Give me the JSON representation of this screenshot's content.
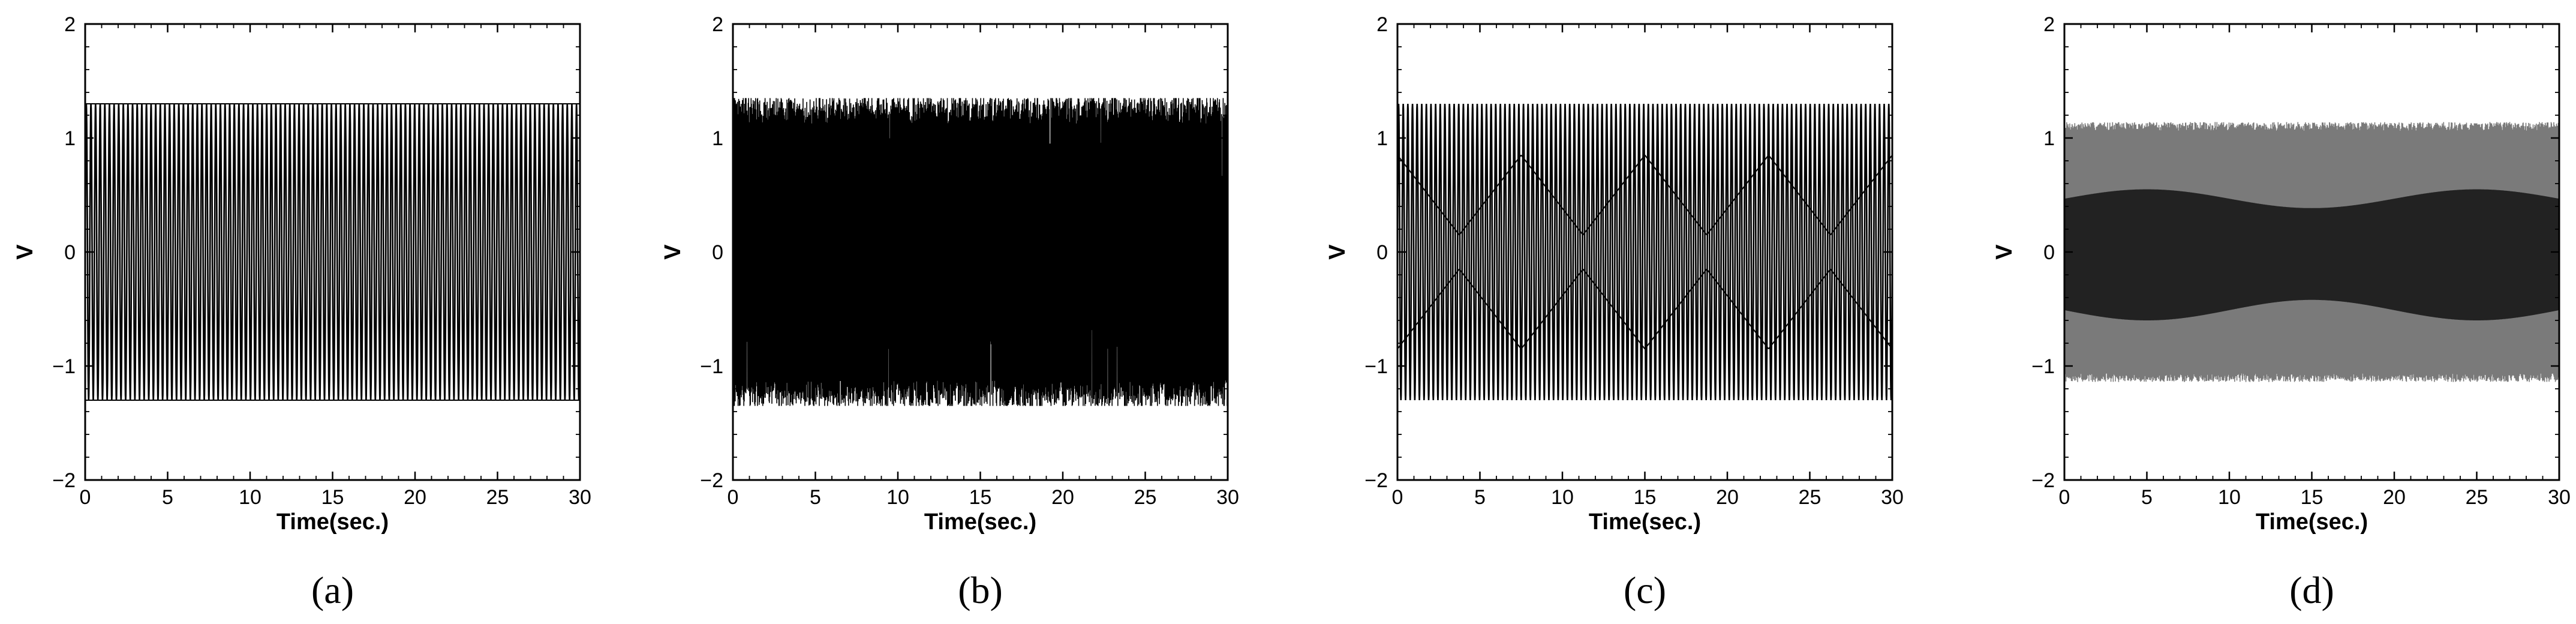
{
  "figure": {
    "panels": [
      {
        "label": "(a)"
      },
      {
        "label": "(b)"
      },
      {
        "label": "(c)"
      },
      {
        "label": "(d)"
      }
    ]
  },
  "chart_data": [
    {
      "type": "line",
      "panel_label": "(a)",
      "xlabel": "Time(sec.)",
      "ylabel": "V",
      "xlim": [
        0,
        30
      ],
      "ylim": [
        -2,
        2
      ],
      "xticks": [
        0,
        5,
        10,
        15,
        20,
        25,
        30
      ],
      "yticks": [
        -2,
        -1,
        0,
        1,
        2
      ],
      "grid": false,
      "series": [
        {
          "color": "#000000",
          "waveform": "steady oscillation, full-scale, slow beat",
          "oscillation_amplitude": 1.3,
          "cycles_over_range": 107,
          "envelope_max": 1.3,
          "envelope_min": -1.3,
          "inner_band_min": 1.3,
          "inner_band_max": 1.3,
          "beat_period": 6.0
        }
      ]
    },
    {
      "type": "line",
      "panel_label": "(b)",
      "xlabel": "Time(sec.)",
      "ylabel": "V",
      "xlim": [
        0,
        30
      ],
      "ylim": [
        -2,
        2
      ],
      "xticks": [
        0,
        5,
        10,
        15,
        20,
        25,
        30
      ],
      "yticks": [
        -2,
        -1,
        0,
        1,
        2
      ],
      "grid": false,
      "series": [
        {
          "color": "#000000",
          "waveform": "dense noisy oscillation",
          "oscillation_amplitude": 1.25,
          "envelope_max": 1.35,
          "envelope_min": -1.35,
          "dense_band": [
            -0.55,
            0.5
          ]
        }
      ]
    },
    {
      "type": "line",
      "panel_label": "(c)",
      "xlabel": "Time(sec.)",
      "ylabel": "V",
      "xlim": [
        0,
        30
      ],
      "ylim": [
        -2,
        2
      ],
      "xticks": [
        0,
        5,
        10,
        15,
        20,
        25,
        30
      ],
      "yticks": [
        -2,
        -1,
        0,
        1,
        2
      ],
      "grid": false,
      "series": [
        {
          "color": "#000000",
          "waveform": "oscillation with diamond beat pattern",
          "oscillation_amplitude": 1.3,
          "cycles_over_range": 107,
          "envelope_max": 1.3,
          "envelope_min": -1.3,
          "inner_band_min": 0.15,
          "inner_band_max": 0.85,
          "beat_period": 7.5
        }
      ]
    },
    {
      "type": "line",
      "panel_label": "(d)",
      "xlabel": "Time(sec.)",
      "ylabel": "V",
      "xlim": [
        0,
        30
      ],
      "ylim": [
        -2,
        2
      ],
      "xticks": [
        0,
        5,
        10,
        15,
        20,
        25,
        30
      ],
      "yticks": [
        -2,
        -1,
        0,
        1,
        2
      ],
      "grid": false,
      "series": [
        {
          "color": "#555555",
          "waveform": "dense oscillation band",
          "oscillation_amplitude": 1.1,
          "envelope_max": 1.12,
          "envelope_min": -1.12,
          "dark_band": [
            -0.6,
            0.55
          ]
        }
      ]
    }
  ]
}
